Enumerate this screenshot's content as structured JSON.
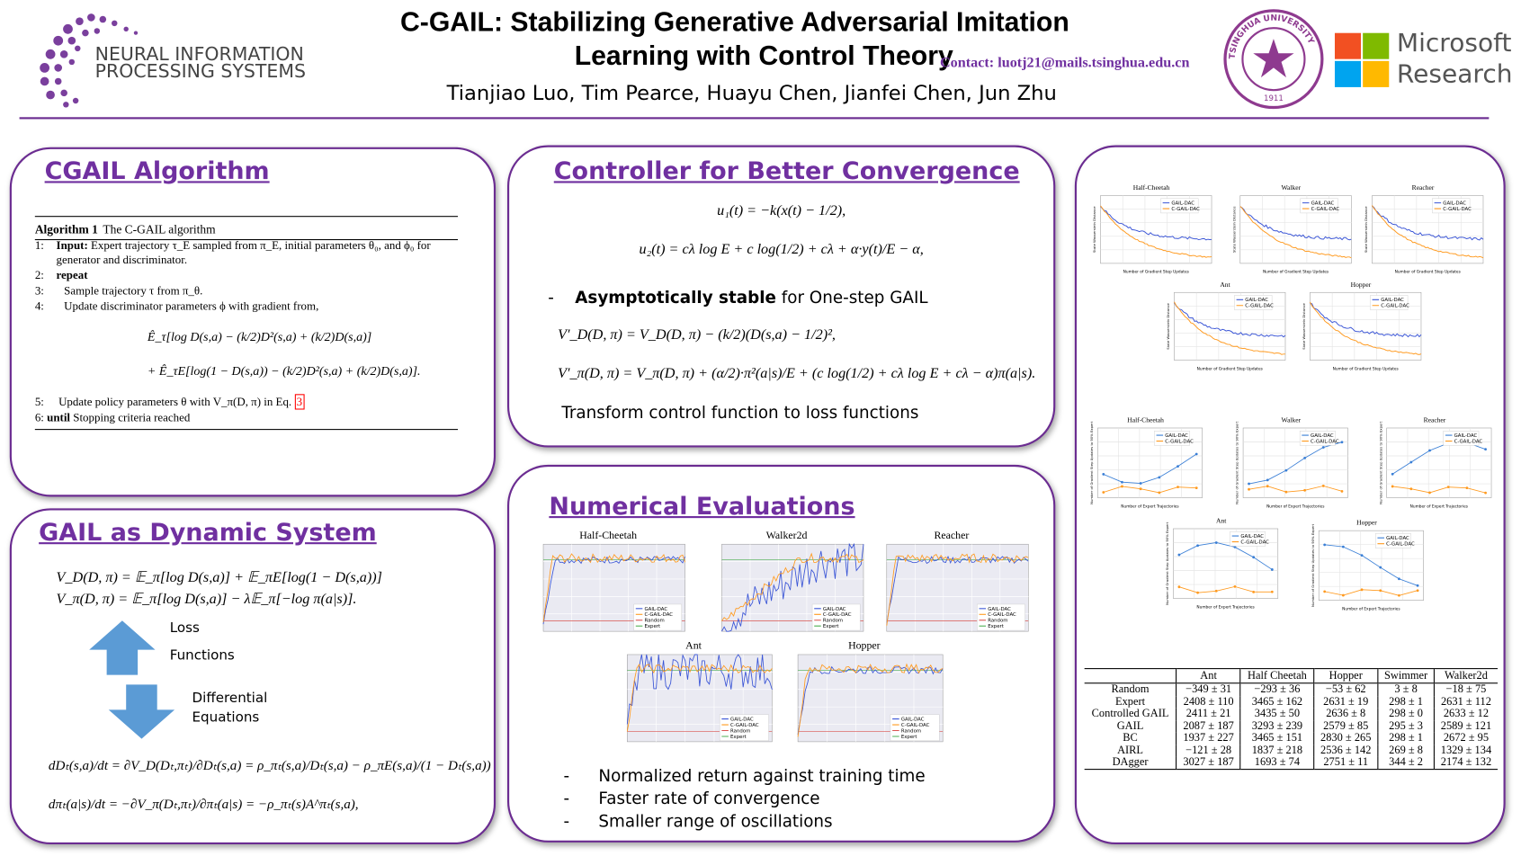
{
  "header": {
    "title_lines": [
      "C-GAIL: Stabilizing Generative Adversarial Imitation",
      "Learning with Control Theory"
    ],
    "contact": "Contact: luotj21@mails.tsinghua.edu.cn",
    "authors": "Tianjiao Luo, Tim Pearce, Huayu Chen, Jianfei Chen, Jun Zhu",
    "neurips": [
      "NEURAL INFORMATION",
      "PROCESSING SYSTEMS"
    ],
    "tsinghua": {
      "name": "TSINGHUA UNIVERSITY",
      "year": "1911"
    },
    "microsoft": [
      "Microsoft",
      "Research"
    ]
  },
  "algorithm": {
    "heading": "CGAIL Algorithm",
    "caption_bold": "Algorithm 1",
    "caption": "The C-GAIL algorithm",
    "lines": [
      {
        "num": "1:",
        "bold": "Input:",
        "text": "Expert trajectory τ_E sampled from π_E, initial parameters θ₀, and ϕ₀ for generator and discriminator."
      },
      {
        "num": "2:",
        "bold": "repeat"
      },
      {
        "num": "3:",
        "text": "Sample trajectory τ from π_θ."
      },
      {
        "num": "4:",
        "text": "Update discriminator parameters ϕ with gradient from,"
      }
    ],
    "equations": [
      "Ê_τ[log D(s,a) − (k/2)D²(s,a) + (k/2)D(s,a)]",
      "+ Ê_τE[log(1 − D(s,a)) − (k/2)D²(s,a) + (k/2)D(s,a)]."
    ],
    "line5": {
      "num": "5:",
      "text": "Update policy parameters θ with V_π(D, π) in Eq.",
      "ref": "3"
    },
    "line6": {
      "num": "6:",
      "bold": "until",
      "text": "Stopping criteria reached"
    }
  },
  "dynamic": {
    "heading": "GAIL as Dynamic System",
    "equations": [
      "V_D(D, π) = 𝔼_π[log D(s,a)] + 𝔼_πE[log(1 − D(s,a))]",
      "V_π(D, π) = 𝔼_π[log D(s,a)] − λ𝔼_π[−log π(a|s)]."
    ],
    "up_labels": [
      "Loss",
      "Functions"
    ],
    "down_labels": [
      "Differential",
      "Equations"
    ],
    "ode": [
      "dDₜ(s,a)/dt = ∂V_D(Dₜ,πₜ)/∂Dₜ(s,a) = ρ_πₜ(s,a)/Dₜ(s,a) − ρ_πE(s,a)/(1 − Dₜ(s,a))",
      "dπₜ(a|s)/dt = −∂V_π(Dₜ,πₜ)/∂πₜ(a|s) = −ρ_πₜ(s)A^πₜ(s,a),"
    ]
  },
  "controller": {
    "heading": "Controller for Better Convergence",
    "equations": [
      "u₁(t) = −k(x(t) − 1/2),",
      "u₂(t) = cλ log E + c log(1/2) + cλ + α·y(t)/E − α,"
    ],
    "bullet_bold": "Asymptotically stable",
    "bullet_text": "for One-step GAIL",
    "lyapunov": [
      "V′_D(D, π) = V_D(D, π) − (k/2)(D(s,a) − 1/2)²,",
      "V′_π(D, π) = V_π(D, π) + (α/2)·π²(a|s)/E + (c log(1/2) + cλ log E + cλ − α)π(a|s)."
    ],
    "note": "Transform control function to loss functions"
  },
  "numerical": {
    "heading": "Numerical Evaluations",
    "charts": [
      {
        "title": "Half-Cheetah"
      },
      {
        "title": "Walker2d"
      },
      {
        "title": "Reacher"
      },
      {
        "title": "Ant"
      },
      {
        "title": "Hopper"
      }
    ],
    "legend": [
      {
        "name": "GAIL-DAC",
        "color": "#3a55d6"
      },
      {
        "name": "C-GAIL-DAC",
        "color": "#ff9a1f"
      },
      {
        "name": "Random",
        "color": "#d9534f"
      },
      {
        "name": "Expert",
        "color": "#4caf50"
      }
    ],
    "bullets": [
      "Normalized return against training time",
      "Faster rate of convergence",
      "Smaller range of oscillations"
    ]
  },
  "results": {
    "curves": {
      "charts": [
        {
          "title": "Half-Cheetah"
        },
        {
          "title": "Walker"
        },
        {
          "title": "Reacher"
        },
        {
          "title": "Ant"
        },
        {
          "title": "Hopper"
        }
      ],
      "legend": [
        {
          "name": "GAIL-DAC",
          "color": "#3a55d6"
        },
        {
          "name": "C-GAIL-DAC",
          "color": "#ff9a1f"
        }
      ],
      "x_label": "Number of Gradient Step Updates",
      "y_label": "State Wasserstein Distance"
    },
    "samples": {
      "charts": [
        {
          "title": "Half-Cheetah"
        },
        {
          "title": "Walker"
        },
        {
          "title": "Reacher"
        },
        {
          "title": "Ant"
        },
        {
          "title": "Hopper"
        }
      ],
      "legend": [
        {
          "name": "GAIL-DAC",
          "color": "#3a7fd6"
        },
        {
          "name": "C-GAIL-DAC",
          "color": "#ff9a1f"
        }
      ],
      "x_label": "Number of Expert Trajectories",
      "y_label": "Number of Gradient Step Updates to 90% Expert"
    },
    "table": {
      "columns": [
        "Ant",
        "Half Cheetah",
        "Hopper",
        "Swimmer",
        "Walker2d"
      ],
      "rows": [
        {
          "label": "Random",
          "cells": [
            "−349 ± 31",
            "−293 ± 36",
            "−53 ± 62",
            "3 ± 8",
            "−18 ± 75"
          ]
        },
        {
          "label": "Expert",
          "cells": [
            "2408 ± 110",
            "3465 ± 162",
            "2631 ± 19",
            "298 ± 1",
            "2631 ± 112"
          ]
        },
        {
          "label": "Controlled GAIL",
          "cells": [
            "2411 ± 21",
            "3435 ± 50",
            "2636 ± 8",
            "298 ± 0",
            "2633 ± 12"
          ]
        },
        {
          "label": "GAIL",
          "cells": [
            "2087 ± 187",
            "3293 ± 239",
            "2579 ± 85",
            "295 ± 3",
            "2589 ± 121"
          ]
        },
        {
          "label": "BC",
          "cells": [
            "1937 ± 227",
            "3465 ± 151",
            "2830 ± 265",
            "298 ± 1",
            "2672 ± 95"
          ]
        },
        {
          "label": "AIRL",
          "cells": [
            "−121 ± 28",
            "1837 ± 218",
            "2536 ± 142",
            "269 ± 8",
            "1329 ± 134"
          ]
        },
        {
          "label": "DAgger",
          "cells": [
            "3027 ± 187",
            "1693 ± 74",
            "2751 ± 11",
            "344 ± 2",
            "2174 ± 132"
          ]
        }
      ]
    }
  }
}
